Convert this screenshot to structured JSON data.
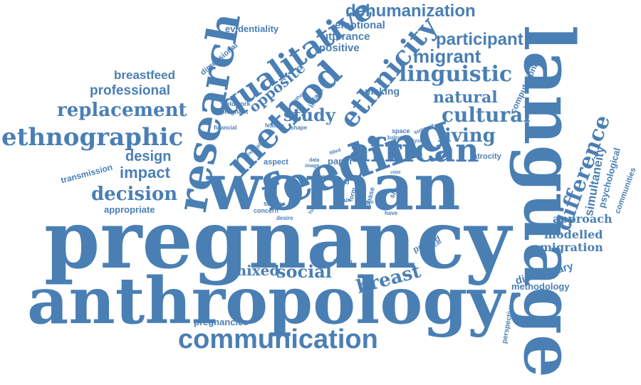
{
  "palette": {
    "word_color": "#4a7fb4",
    "background": "#ffffff"
  },
  "words": [
    {
      "text": "pregnancy",
      "weight": 10
    },
    {
      "text": "anthropology",
      "weight": 10
    },
    {
      "text": "language",
      "weight": 10
    },
    {
      "text": "woman",
      "weight": 9
    },
    {
      "text": "feeding",
      "weight": 7
    },
    {
      "text": "research",
      "weight": 7
    },
    {
      "text": "method",
      "weight": 6
    },
    {
      "text": "qualitative",
      "weight": 6
    },
    {
      "text": "communication",
      "weight": 5
    },
    {
      "text": "african",
      "weight": 5
    },
    {
      "text": "ethnicity",
      "weight": 5
    },
    {
      "text": "ethnographic",
      "weight": 5
    },
    {
      "text": "difference",
      "weight": 4
    },
    {
      "text": "linguistic",
      "weight": 4
    },
    {
      "text": "dehumanization",
      "weight": 4
    },
    {
      "text": "migrant",
      "weight": 4
    },
    {
      "text": "participant",
      "weight": 4
    },
    {
      "text": "replacement",
      "weight": 4
    },
    {
      "text": "cultural",
      "weight": 4
    },
    {
      "text": "living",
      "weight": 4
    },
    {
      "text": "study",
      "weight": 4
    },
    {
      "text": "decision",
      "weight": 4
    },
    {
      "text": "social",
      "weight": 4
    },
    {
      "text": "breast",
      "weight": 4
    },
    {
      "text": "impact",
      "weight": 3
    },
    {
      "text": "design",
      "weight": 3
    },
    {
      "text": "professional",
      "weight": 3
    },
    {
      "text": "breastfeed",
      "weight": 3
    },
    {
      "text": "natural",
      "weight": 3
    },
    {
      "text": "making",
      "weight": 2
    },
    {
      "text": "opposite",
      "weight": 3
    },
    {
      "text": "simultaneity",
      "weight": 3
    },
    {
      "text": "mixed",
      "weight": 3
    },
    {
      "text": "disciplinary",
      "weight": 3
    },
    {
      "text": "approach",
      "weight": 2
    },
    {
      "text": "modelled",
      "weight": 2
    },
    {
      "text": "migration",
      "weight": 2
    },
    {
      "text": "emotional",
      "weight": 2
    },
    {
      "text": "utterance",
      "weight": 2
    },
    {
      "text": "positive",
      "weight": 2
    },
    {
      "text": "evidentiality",
      "weight": 2
    },
    {
      "text": "psychological",
      "weight": 2
    },
    {
      "text": "computational",
      "weight": 2
    },
    {
      "text": "communities",
      "weight": 2
    },
    {
      "text": "methodology",
      "weight": 2
    },
    {
      "text": "pregnancies",
      "weight": 2
    },
    {
      "text": "transmission",
      "weight": 2
    },
    {
      "text": "appropriate",
      "weight": 2
    },
    {
      "text": "dimensional",
      "weight": 1
    },
    {
      "text": "infant",
      "weight": 1
    },
    {
      "text": "atrocity",
      "weight": 1
    },
    {
      "text": "perspective",
      "weight": 1
    },
    {
      "text": "aspect",
      "weight": 1
    },
    {
      "text": "paper",
      "weight": 1
    },
    {
      "text": "printed",
      "weight": 1
    },
    {
      "text": "phase",
      "weight": 1
    },
    {
      "text": "interview",
      "weight": 1
    },
    {
      "text": "vertical",
      "weight": 1
    },
    {
      "text": "sense",
      "weight": 1
    },
    {
      "text": "concern",
      "weight": 1
    },
    {
      "text": "desire",
      "weight": 1
    },
    {
      "text": "have",
      "weight": 1
    },
    {
      "text": "finding",
      "weight": 1
    },
    {
      "text": "sharp",
      "weight": 1
    },
    {
      "text": "form",
      "weight": 1
    },
    {
      "text": "aid",
      "weight": 1
    },
    {
      "text": "pain",
      "weight": 1
    },
    {
      "text": "fieldwork",
      "weight": 1
    },
    {
      "text": "pregnant",
      "weight": 1
    },
    {
      "text": "financial",
      "weight": 1
    },
    {
      "text": "feature",
      "weight": 1
    },
    {
      "text": "shape",
      "weight": 1
    },
    {
      "text": "example",
      "weight": 1
    },
    {
      "text": "mother",
      "weight": 1
    },
    {
      "text": "space",
      "weight": 1
    },
    {
      "text": "baby",
      "weight": 1
    },
    {
      "text": "support",
      "weight": 1
    },
    {
      "text": "system",
      "weight": 1
    },
    {
      "text": "filled",
      "weight": 1
    },
    {
      "text": "data",
      "weight": 1
    },
    {
      "text": "image",
      "weight": 1
    },
    {
      "text": "child",
      "weight": 1
    },
    {
      "text": "step",
      "weight": 1
    },
    {
      "text": "risk",
      "weight": 1
    },
    {
      "text": "london",
      "weight": 1
    },
    {
      "text": "point",
      "weight": 1
    }
  ]
}
